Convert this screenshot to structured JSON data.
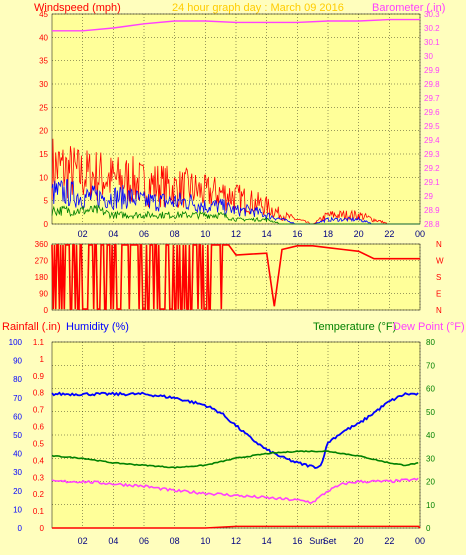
{
  "header": {
    "left_title": "Windspeed (mph)",
    "center_title": "24 hour graph day : March 09 2016",
    "right_title": "Barometer (.in)"
  },
  "colors": {
    "background": "#fffebd",
    "plot_bg": "#ffff99",
    "wind_avg": "#008000",
    "wind_mid": "#0000ff",
    "wind_gust": "#ff0000",
    "barometer": "#ff40ff",
    "direction": "#ff0000",
    "humidity": "#0000ff",
    "temperature": "#008000",
    "dewpoint": "#ff40ff",
    "rainfall": "#ff0000"
  },
  "chart_data": [
    {
      "id": "wind",
      "type": "line",
      "x_ticks": [
        "02",
        "04",
        "06",
        "08",
        "10",
        "12",
        "14",
        "16",
        "18",
        "20",
        "22",
        "00"
      ],
      "left_axis": {
        "label": "Windspeed (mph)",
        "ticks": [
          "0",
          "5",
          "10",
          "15",
          "20",
          "25",
          "30",
          "35",
          "40",
          "45"
        ],
        "range": [
          0,
          45
        ]
      },
      "right_axis": {
        "label": "Barometer (.in)",
        "ticks": [
          "28.8",
          "28.9",
          "29",
          "29.1",
          "29.2",
          "29.3",
          "29.4",
          "29.5",
          "29.6",
          "29.7",
          "29.8",
          "29.9",
          "30",
          "30.1",
          "30.2",
          "30.3"
        ],
        "range": [
          28.8,
          30.3
        ]
      },
      "series": [
        {
          "key": "gust",
          "hours": [
            0,
            1,
            2,
            3,
            4,
            5,
            6,
            7,
            8,
            9,
            10,
            11,
            12,
            13,
            14,
            15,
            16,
            17,
            18,
            19,
            20,
            21,
            22,
            23,
            24
          ],
          "values": [
            13,
            12,
            11,
            11,
            10,
            10,
            9,
            9,
            8,
            8,
            7,
            7,
            6,
            5,
            4,
            2,
            1,
            0,
            2,
            2,
            2,
            1,
            0,
            0,
            0
          ]
        },
        {
          "key": "mid",
          "hours": [
            0,
            1,
            2,
            3,
            4,
            5,
            6,
            7,
            8,
            9,
            10,
            11,
            12,
            13,
            14,
            15,
            16,
            17,
            18,
            19,
            20,
            21,
            22,
            23,
            24
          ],
          "values": [
            7,
            7,
            6,
            6,
            6,
            6,
            5,
            5,
            5,
            5,
            4,
            4,
            3,
            3,
            2,
            1,
            0,
            0,
            1,
            1,
            1,
            0,
            0,
            0,
            0
          ]
        },
        {
          "key": "avg",
          "hours": [
            0,
            1,
            2,
            3,
            4,
            5,
            6,
            7,
            8,
            9,
            10,
            11,
            12,
            13,
            14,
            15,
            16,
            17,
            18,
            19,
            20,
            21,
            22,
            23,
            24
          ],
          "values": [
            3,
            3,
            3,
            3,
            2,
            2,
            2,
            2,
            2,
            2,
            2,
            2,
            1,
            1,
            1,
            0,
            0,
            0,
            0,
            0,
            0,
            0,
            0,
            0,
            0
          ]
        },
        {
          "key": "barometer",
          "hours": [
            0,
            2,
            4,
            6,
            8,
            10,
            12,
            14,
            16,
            18,
            20,
            22,
            24
          ],
          "values": [
            30.18,
            30.18,
            30.2,
            30.23,
            30.25,
            30.25,
            30.24,
            30.24,
            30.24,
            30.25,
            30.25,
            30.26,
            30.26
          ]
        }
      ]
    },
    {
      "id": "direction",
      "type": "line",
      "x_ticks": [
        "02",
        "04",
        "06",
        "08",
        "10",
        "12",
        "14",
        "16",
        "18",
        "20",
        "22",
        "00"
      ],
      "left_axis": {
        "ticks": [
          "0",
          "90",
          "180",
          "270",
          "360"
        ],
        "range": [
          0,
          360
        ]
      },
      "right_axis": {
        "ticks": [
          "N",
          "E",
          "S",
          "W",
          "N"
        ]
      },
      "series": [
        {
          "key": "direction",
          "hours": [
            0,
            1,
            2,
            3,
            4,
            5,
            6,
            7,
            8,
            9,
            10,
            11,
            11.5,
            12,
            13,
            14,
            14.5,
            15,
            16,
            17,
            18,
            19,
            20,
            21,
            22,
            23,
            24
          ],
          "values": [
            350,
            10,
            350,
            10,
            350,
            350,
            10,
            350,
            10,
            350,
            10,
            350,
            10,
            300,
            305,
            310,
            20,
            330,
            350,
            350,
            340,
            330,
            320,
            280,
            280,
            280,
            280
          ]
        }
      ]
    },
    {
      "id": "temp_hum",
      "type": "line",
      "x_ticks": [
        "02",
        "04",
        "06",
        "08",
        "10",
        "12",
        "14",
        "16",
        "Sun",
        "Set",
        "20",
        "22",
        "00"
      ],
      "left_axis_rain": {
        "label": "Rainfall (.in)",
        "ticks": [
          "0",
          "0.1",
          "0.2",
          "0.3",
          "0.4",
          "0.5",
          "0.6",
          "0.7",
          "0.8",
          "0.9",
          "1",
          "1.1"
        ],
        "range": [
          0,
          1.1
        ]
      },
      "left_axis_humidity": {
        "label": "Humidity (%)",
        "ticks": [
          "0",
          "10",
          "20",
          "30",
          "40",
          "50",
          "60",
          "70",
          "80",
          "90",
          "100"
        ],
        "range": [
          0,
          100
        ]
      },
      "right_axis": {
        "label_temp": "Temperature (°F)",
        "label_dew": "Dew Point (°F)",
        "ticks": [
          "0",
          "10",
          "20",
          "30",
          "40",
          "50",
          "60",
          "70",
          "80"
        ],
        "range": [
          0,
          80
        ]
      },
      "series": [
        {
          "key": "humidity",
          "hours": [
            0,
            2,
            4,
            6,
            8,
            10,
            11,
            12,
            13,
            14,
            15,
            16,
            17,
            17.5,
            18,
            19,
            20,
            21,
            22,
            23,
            24
          ],
          "values": [
            72,
            72,
            72,
            72,
            70,
            66,
            62,
            55,
            48,
            42,
            38,
            35,
            33,
            33,
            46,
            52,
            56,
            62,
            68,
            72,
            72
          ]
        },
        {
          "key": "temperature",
          "hours": [
            0,
            2,
            4,
            6,
            8,
            10,
            12,
            14,
            16,
            18,
            20,
            22,
            23,
            24
          ],
          "values": [
            31,
            30,
            28,
            27,
            26,
            27,
            30,
            32,
            33,
            33,
            31,
            28,
            27,
            28
          ]
        },
        {
          "key": "dewpoint",
          "hours": [
            0,
            2,
            4,
            6,
            8,
            10,
            12,
            14,
            16,
            17,
            18,
            19,
            20,
            22,
            24
          ],
          "values": [
            20,
            20,
            19,
            18,
            16,
            15,
            14,
            13,
            12,
            11,
            16,
            19,
            20,
            20,
            21
          ]
        },
        {
          "key": "rainfall",
          "hours": [
            0,
            10,
            12,
            14,
            16,
            18,
            20,
            22,
            23.9,
            24
          ],
          "values": [
            0,
            0,
            0.01,
            0.01,
            0.01,
            0.01,
            0.01,
            0.01,
            0.01,
            0
          ]
        }
      ]
    }
  ]
}
